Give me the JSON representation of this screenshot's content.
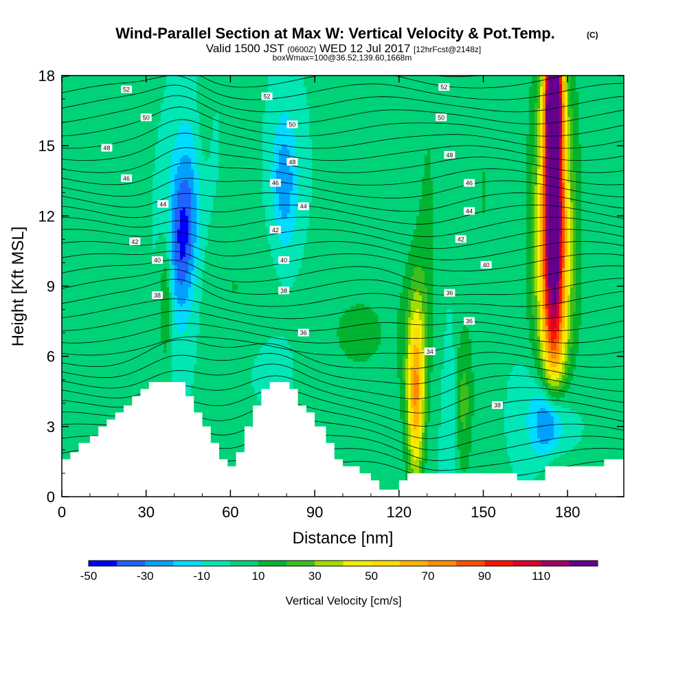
{
  "chart_data": {
    "type": "heatmap",
    "title": "Wind-Parallel Section at Max W: Vertical Velocity & Pot.Temp.",
    "title_mark": "(C)",
    "subtitle": {
      "valid_prefix": "Valid 1500 JST",
      "utc": "(0600Z)",
      "date": "WED 12 Jul 2017",
      "forecast": "[12hrFcst@2148z]"
    },
    "subtitle2": "boxWmax=100@36.52,139.60,1668m",
    "xlabel": "Distance [nm]",
    "ylabel": "Height [Kft MSL]",
    "xlim": [
      0,
      200
    ],
    "ylim": [
      0,
      18
    ],
    "x_ticks": [
      "0",
      "30",
      "60",
      "90",
      "120",
      "150",
      "180"
    ],
    "y_ticks": [
      "0",
      "3",
      "6",
      "9",
      "12",
      "15",
      "18"
    ],
    "x_tick_values": [
      0,
      30,
      60,
      90,
      120,
      150,
      180
    ],
    "y_tick_values": [
      0,
      3,
      6,
      9,
      12,
      15,
      18
    ],
    "colorbar": {
      "title": "Vertical Velocity [cm/s]",
      "labels": [
        "-50",
        "-30",
        "-10",
        "10",
        "30",
        "50",
        "70",
        "90",
        "110"
      ],
      "label_values": [
        -50,
        -30,
        -10,
        10,
        30,
        50,
        70,
        90,
        110
      ],
      "levels": [
        -50,
        -40,
        -30,
        -20,
        -10,
        0,
        10,
        20,
        30,
        40,
        50,
        60,
        70,
        80,
        90,
        100,
        110,
        120
      ],
      "colors": [
        "#0000ff",
        "#1e64ff",
        "#00a0ff",
        "#00dcff",
        "#00e6b4",
        "#00d278",
        "#00b432",
        "#3cbe1e",
        "#a0dc00",
        "#f0f000",
        "#ffdc00",
        "#ffb400",
        "#ff8c00",
        "#ff5000",
        "#ff1400",
        "#dc0028",
        "#a00064",
        "#64008c"
      ]
    },
    "background_color": "#00d278",
    "terrain_color": "#ffffff",
    "terrain": [
      [
        0,
        1.6
      ],
      [
        3,
        1.6
      ],
      [
        3,
        1.9
      ],
      [
        6,
        1.9
      ],
      [
        6,
        2.3
      ],
      [
        10,
        2.3
      ],
      [
        10,
        2.6
      ],
      [
        13,
        2.6
      ],
      [
        13,
        3
      ],
      [
        16,
        3
      ],
      [
        16,
        3.3
      ],
      [
        19,
        3.3
      ],
      [
        19,
        3.6
      ],
      [
        22,
        3.6
      ],
      [
        22,
        3.9
      ],
      [
        25,
        3.9
      ],
      [
        25,
        4.3
      ],
      [
        28,
        4.3
      ],
      [
        28,
        4.6
      ],
      [
        31,
        4.6
      ],
      [
        31,
        4.9
      ],
      [
        44,
        4.9
      ],
      [
        44,
        4.3
      ],
      [
        47,
        4.3
      ],
      [
        47,
        3.6
      ],
      [
        50,
        3.6
      ],
      [
        50,
        3
      ],
      [
        53,
        3
      ],
      [
        53,
        2.3
      ],
      [
        56,
        2.3
      ],
      [
        56,
        1.6
      ],
      [
        59,
        1.6
      ],
      [
        59,
        1.3
      ],
      [
        62,
        1.3
      ],
      [
        62,
        1.9
      ],
      [
        65,
        1.9
      ],
      [
        65,
        3
      ],
      [
        68,
        3
      ],
      [
        68,
        3.9
      ],
      [
        71,
        3.9
      ],
      [
        71,
        4.6
      ],
      [
        74,
        4.6
      ],
      [
        74,
        4.9
      ],
      [
        81,
        4.9
      ],
      [
        81,
        4.6
      ],
      [
        84,
        4.6
      ],
      [
        84,
        3.9
      ],
      [
        87,
        3.9
      ],
      [
        87,
        3.6
      ],
      [
        90,
        3.6
      ],
      [
        90,
        3
      ],
      [
        94,
        3
      ],
      [
        94,
        2.3
      ],
      [
        97,
        2.3
      ],
      [
        97,
        1.6
      ],
      [
        100,
        1.6
      ],
      [
        100,
        1.3
      ],
      [
        106,
        1.3
      ],
      [
        106,
        1
      ],
      [
        110,
        1
      ],
      [
        110,
        0.7
      ],
      [
        113,
        0.7
      ],
      [
        113,
        0.3
      ],
      [
        120,
        0.3
      ],
      [
        120,
        0.7
      ],
      [
        123,
        0.7
      ],
      [
        123,
        1
      ],
      [
        162,
        1
      ],
      [
        162,
        0.7
      ],
      [
        172,
        0.7
      ],
      [
        172,
        1.3
      ],
      [
        193,
        1.3
      ],
      [
        193,
        1.6
      ],
      [
        200,
        1.6
      ]
    ],
    "velocity_features": [
      {
        "x": 43,
        "y": 11,
        "sx": 5,
        "sy": 3.2,
        "rot": -0.2,
        "value": -35
      },
      {
        "x": 44,
        "y": 12,
        "sx": 9,
        "sy": 5.5,
        "rot": -0.25,
        "value": -15
      },
      {
        "x": 79,
        "y": 13.5,
        "sx": 4,
        "sy": 2.5,
        "rot": 0,
        "value": -20
      },
      {
        "x": 80,
        "y": 13,
        "sx": 7,
        "sy": 5,
        "rot": 0,
        "value": -10
      },
      {
        "x": 174,
        "y": 3.2,
        "sx": 5,
        "sy": 1.6,
        "rot": 0,
        "value": -45
      },
      {
        "x": 173,
        "y": 3.5,
        "sx": 10,
        "sy": 2.8,
        "rot": 0,
        "value": -25
      },
      {
        "x": 130,
        "y": 4,
        "sx": 4,
        "sy": 5,
        "rot": 0,
        "value": -10
      },
      {
        "x": 138,
        "y": 3.5,
        "sx": 2.5,
        "sy": 4,
        "rot": 0,
        "value": -12
      },
      {
        "x": 75,
        "y": 5.5,
        "sx": 8,
        "sy": 1.5,
        "rot": 0,
        "value": -8
      },
      {
        "x": 126,
        "y": 4.2,
        "sx": 3,
        "sy": 3.6,
        "rot": 0,
        "value": 52
      },
      {
        "x": 127,
        "y": 5.5,
        "sx": 5,
        "sy": 4.5,
        "rot": 0,
        "value": 28
      },
      {
        "x": 143,
        "y": 4,
        "sx": 3,
        "sy": 3,
        "rot": 0,
        "value": 25
      },
      {
        "x": 37,
        "y": 8.5,
        "sx": 2.5,
        "sy": 2.8,
        "rot": 0,
        "value": 30
      },
      {
        "x": 106,
        "y": 7,
        "sx": 22,
        "sy": 3.5,
        "rot": 0,
        "value": 12
      },
      {
        "x": 60,
        "y": 9,
        "sx": 18,
        "sy": 3,
        "rot": 0,
        "value": 11
      },
      {
        "x": 130,
        "y": 12,
        "sx": 4,
        "sy": 8,
        "rot": 0.15,
        "value": 12
      },
      {
        "x": 150,
        "y": 13,
        "sx": 5,
        "sy": 8,
        "rot": 0.25,
        "value": 11
      },
      {
        "x": 50,
        "y": 16,
        "sx": 3,
        "sy": 4,
        "rot": 0,
        "value": 12
      },
      {
        "x": 175,
        "y": 13,
        "sx": 3.5,
        "sy": 7,
        "rot": 0,
        "value": 92
      },
      {
        "x": 175,
        "y": 17,
        "sx": 2.5,
        "sy": 2,
        "rot": 0,
        "value": 112
      },
      {
        "x": 175,
        "y": 10,
        "sx": 6,
        "sy": 8,
        "rot": 0,
        "value": 52
      },
      {
        "x": 175,
        "y": 11,
        "sx": 9,
        "sy": 9,
        "rot": 0,
        "value": 22
      }
    ],
    "theta_labels": [
      {
        "text": "52",
        "x": 23,
        "y": 17.4
      },
      {
        "text": "52",
        "x": 73,
        "y": 17.1
      },
      {
        "text": "52",
        "x": 136,
        "y": 17.5
      },
      {
        "text": "50",
        "x": 30,
        "y": 16.2
      },
      {
        "text": "50",
        "x": 82,
        "y": 15.9
      },
      {
        "text": "50",
        "x": 135,
        "y": 16.2
      },
      {
        "text": "48",
        "x": 16,
        "y": 14.9
      },
      {
        "text": "48",
        "x": 82,
        "y": 14.3
      },
      {
        "text": "48",
        "x": 138,
        "y": 14.6
      },
      {
        "text": "46",
        "x": 23,
        "y": 13.6
      },
      {
        "text": "46",
        "x": 76,
        "y": 13.4
      },
      {
        "text": "46",
        "x": 145,
        "y": 13.4
      },
      {
        "text": "44",
        "x": 36,
        "y": 12.5
      },
      {
        "text": "44",
        "x": 86,
        "y": 12.4
      },
      {
        "text": "44",
        "x": 145,
        "y": 12.2
      },
      {
        "text": "42",
        "x": 26,
        "y": 10.9
      },
      {
        "text": "42",
        "x": 76,
        "y": 11.4
      },
      {
        "text": "42",
        "x": 142,
        "y": 11
      },
      {
        "text": "40",
        "x": 34,
        "y": 10.1
      },
      {
        "text": "40",
        "x": 79,
        "y": 10.1
      },
      {
        "text": "40",
        "x": 151,
        "y": 9.9
      },
      {
        "text": "38",
        "x": 34,
        "y": 8.6
      },
      {
        "text": "38",
        "x": 79,
        "y": 8.8
      },
      {
        "text": "38",
        "x": 155,
        "y": 3.9
      },
      {
        "text": "36",
        "x": 86,
        "y": 7
      },
      {
        "text": "36",
        "x": 138,
        "y": 8.7
      },
      {
        "text": "36",
        "x": 145,
        "y": 7.5
      },
      {
        "text": "34",
        "x": 131,
        "y": 6.2
      }
    ]
  }
}
